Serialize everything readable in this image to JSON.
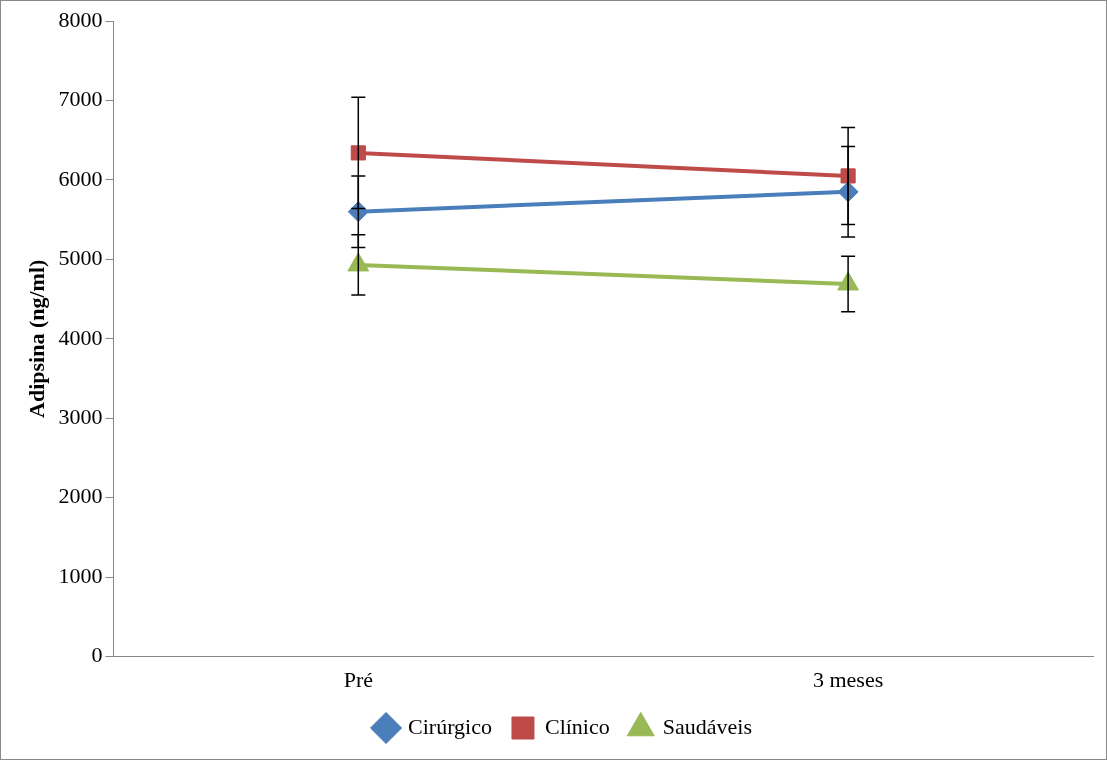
{
  "chart_data": {
    "type": "line",
    "ylabel": "Adipsina (ng/ml)",
    "categories": [
      "Pré",
      "3 meses"
    ],
    "series": [
      {
        "name": "Cirúrgico",
        "color": "#4a7ebb",
        "marker": "diamond",
        "values": [
          5600,
          5850
        ],
        "errors": [
          450,
          570
        ]
      },
      {
        "name": "Clínico",
        "color": "#be4b48",
        "marker": "square",
        "values": [
          6340,
          6050
        ],
        "errors": [
          700,
          610
        ]
      },
      {
        "name": "Saudáveis",
        "color": "#98b954",
        "marker": "triangle",
        "values": [
          4930,
          4690
        ],
        "errors": [
          380,
          350
        ]
      }
    ],
    "ylim": [
      0,
      8000
    ],
    "yticks": [
      0,
      1000,
      2000,
      3000,
      4000,
      5000,
      6000,
      7000,
      8000
    ],
    "grid": false,
    "legend": "bottom",
    "line_style": "solid"
  }
}
